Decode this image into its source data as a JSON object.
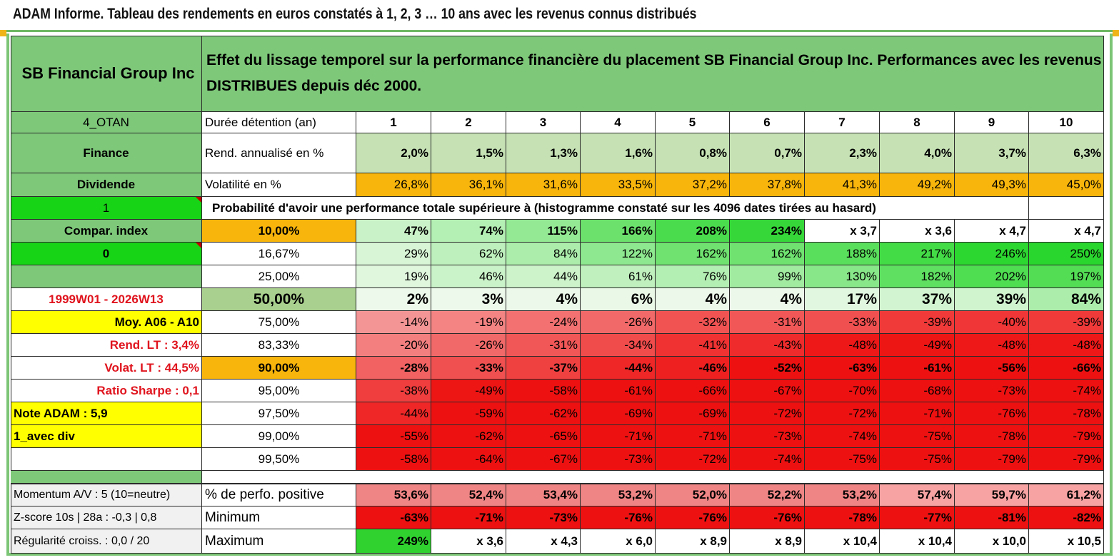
{
  "title": "ADAM Informe. Tableau des rendements en euros constatés à 1, 2, 3 … 10 ans avec les revenus connus distribués",
  "company": "SB Financial Group Inc",
  "header_text": "Effet du lissage temporel sur la performance financière du placement SB Financial Group Inc. Performances avec les revenus DISTRIBUES depuis déc 2000.",
  "left": {
    "code": "4_OTAN",
    "sector": "Finance",
    "dividende": "Dividende",
    "one": "1",
    "compar": "Compar. index",
    "zero": "0",
    "period": "1999W01 - 2026W13",
    "moy": "Moy. A06 - A10",
    "rend_lt": "Rend. LT :   3,4%",
    "volat_lt": "Volat. LT :   44,5%",
    "sharpe": "Ratio Sharpe :    0,1",
    "note": "Note ADAM : 5,9",
    "avec_div": "1_avec div",
    "momentum": "Momentum A/V : 5 (10=neutre)",
    "zscore": "Z-score 10s | 28a : -0,3 | 0,8",
    "regularite": "Régularité croiss. : 0,0 / 20"
  },
  "labels": {
    "duree": "Durée détention (an)",
    "rend": "Rend. annualisé en %",
    "vol": "Volatilité en %",
    "proba": "Probabilité d'avoir une performance totale supérieure à (histogramme constaté sur les 4096 dates tirées au hasard)",
    "pct_pos": "% de perfo. positive",
    "minimum": "Minimum",
    "maximum": "Maximum"
  },
  "years": [
    "1",
    "2",
    "3",
    "4",
    "5",
    "6",
    "7",
    "8",
    "9",
    "10"
  ],
  "rend": [
    "2,0%",
    "1,5%",
    "1,3%",
    "1,6%",
    "0,8%",
    "0,7%",
    "2,3%",
    "4,0%",
    "3,7%",
    "6,3%"
  ],
  "vol": [
    "26,8%",
    "36,1%",
    "31,6%",
    "33,5%",
    "37,2%",
    "37,8%",
    "41,3%",
    "49,2%",
    "49,3%",
    "45,0%"
  ],
  "quantiles": [
    {
      "label": "10,00%",
      "values": [
        "47%",
        "74%",
        "115%",
        "166%",
        "208%",
        "234%",
        "x 3,7",
        "x 3,6",
        "x 4,7",
        "x 4,7"
      ]
    },
    {
      "label": "16,67%",
      "values": [
        "29%",
        "62%",
        "84%",
        "122%",
        "162%",
        "162%",
        "188%",
        "217%",
        "246%",
        "250%"
      ]
    },
    {
      "label": "25,00%",
      "values": [
        "19%",
        "46%",
        "44%",
        "61%",
        "76%",
        "99%",
        "130%",
        "182%",
        "202%",
        "197%"
      ]
    },
    {
      "label": "50,00%",
      "values": [
        "2%",
        "3%",
        "4%",
        "6%",
        "4%",
        "4%",
        "17%",
        "37%",
        "39%",
        "84%"
      ]
    },
    {
      "label": "75,00%",
      "values": [
        "-14%",
        "-19%",
        "-24%",
        "-26%",
        "-32%",
        "-31%",
        "-33%",
        "-39%",
        "-40%",
        "-39%"
      ]
    },
    {
      "label": "83,33%",
      "values": [
        "-20%",
        "-26%",
        "-31%",
        "-34%",
        "-41%",
        "-43%",
        "-48%",
        "-49%",
        "-48%",
        "-48%"
      ]
    },
    {
      "label": "90,00%",
      "values": [
        "-28%",
        "-33%",
        "-37%",
        "-44%",
        "-46%",
        "-52%",
        "-63%",
        "-61%",
        "-56%",
        "-66%"
      ]
    },
    {
      "label": "95,00%",
      "values": [
        "-38%",
        "-49%",
        "-58%",
        "-61%",
        "-66%",
        "-67%",
        "-70%",
        "-68%",
        "-73%",
        "-74%"
      ]
    },
    {
      "label": "97,50%",
      "values": [
        "-44%",
        "-59%",
        "-62%",
        "-69%",
        "-69%",
        "-72%",
        "-72%",
        "-71%",
        "-76%",
        "-78%"
      ]
    },
    {
      "label": "99,00%",
      "values": [
        "-55%",
        "-62%",
        "-65%",
        "-71%",
        "-71%",
        "-73%",
        "-74%",
        "-75%",
        "-78%",
        "-79%"
      ]
    },
    {
      "label": "99,50%",
      "values": [
        "-58%",
        "-64%",
        "-67%",
        "-73%",
        "-72%",
        "-74%",
        "-75%",
        "-75%",
        "-79%",
        "-79%"
      ]
    }
  ],
  "pct_pos": [
    "53,6%",
    "52,4%",
    "53,4%",
    "53,2%",
    "52,0%",
    "52,2%",
    "53,2%",
    "57,4%",
    "59,7%",
    "61,2%"
  ],
  "minimum": [
    "-63%",
    "-71%",
    "-73%",
    "-76%",
    "-76%",
    "-76%",
    "-78%",
    "-77%",
    "-81%",
    "-82%"
  ],
  "maximum": [
    "249%",
    "x 3,6",
    "x 4,3",
    "x 6,0",
    "x 8,9",
    "x 8,9",
    "x 10,4",
    "x 10,4",
    "x 10,0",
    "x 10,5"
  ],
  "colors": {
    "header_green": "#7ec87a",
    "left_green": "#7ec87a",
    "bright_green": "#17d417",
    "orange": "#f8b50b",
    "yellow": "#ffff00",
    "red_text": "#e0141e",
    "rend_fill": "#c6e2b5",
    "median_fill": "#a9d08e"
  }
}
